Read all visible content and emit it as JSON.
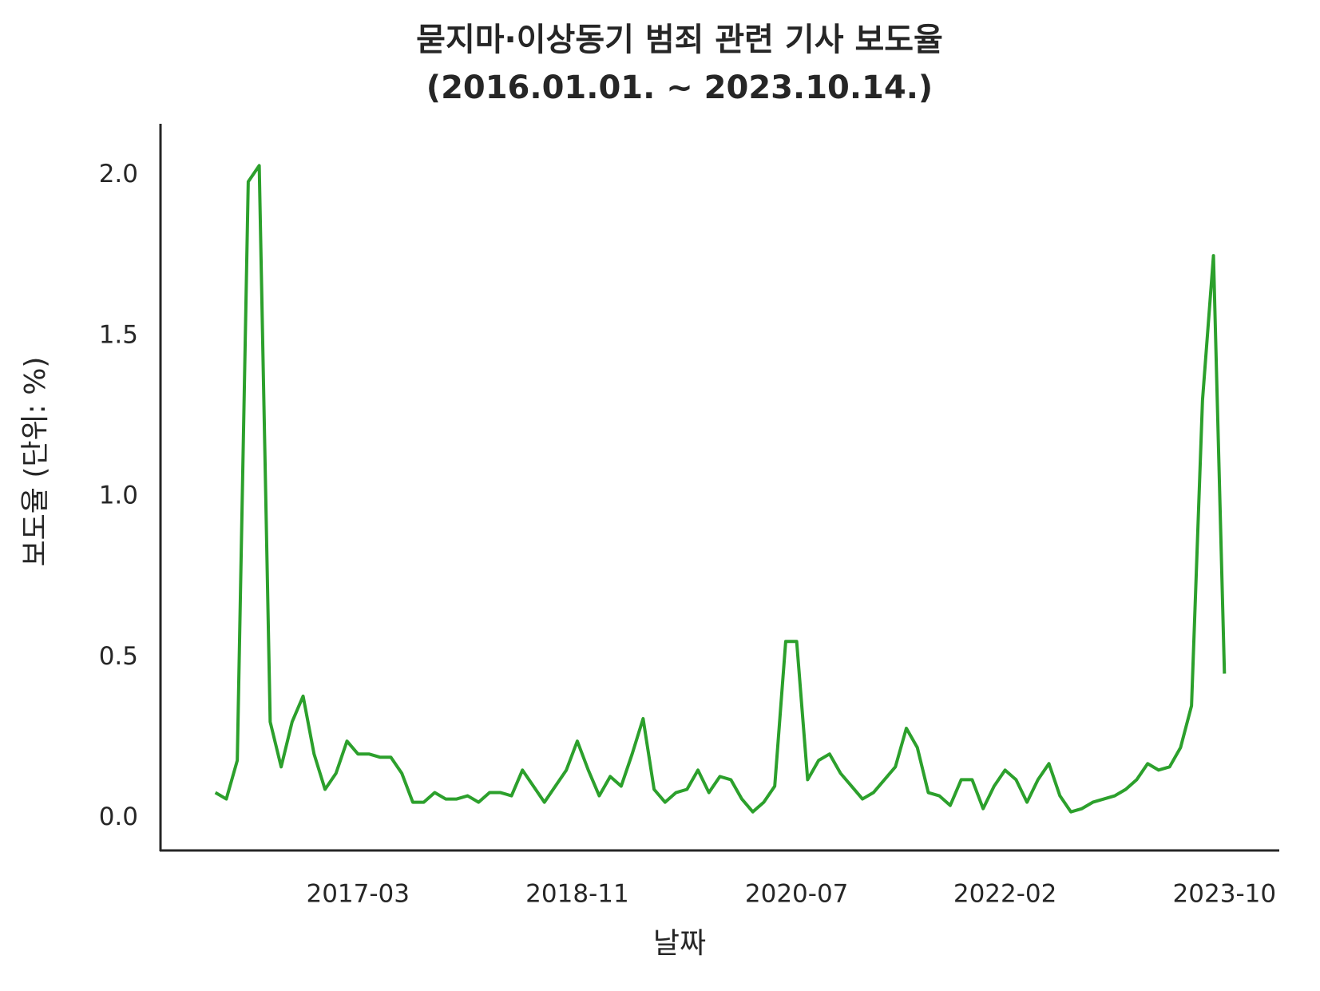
{
  "chart_data": {
    "type": "line",
    "title": "묻지마·이상동기 범죄 관련 기사 보도율",
    "subtitle": "(2016.01.01. ~ 2023.10.14.)",
    "x_label": "날짜",
    "y_label": "보도율 (단위: %)",
    "color": "#2ca02c",
    "x": [
      "2016-02",
      "2016-03",
      "2016-04",
      "2016-05",
      "2016-06",
      "2016-07",
      "2016-08",
      "2016-09",
      "2016-10",
      "2016-11",
      "2016-12",
      "2017-01",
      "2017-02",
      "2017-03",
      "2017-04",
      "2017-05",
      "2017-06",
      "2017-07",
      "2017-08",
      "2017-09",
      "2017-10",
      "2017-11",
      "2017-12",
      "2018-01",
      "2018-02",
      "2018-03",
      "2018-04",
      "2018-05",
      "2018-06",
      "2018-07",
      "2018-08",
      "2018-09",
      "2018-10",
      "2018-11",
      "2018-12",
      "2019-01",
      "2019-02",
      "2019-03",
      "2019-04",
      "2019-05",
      "2019-06",
      "2019-07",
      "2019-08",
      "2019-09",
      "2019-10",
      "2019-11",
      "2019-12",
      "2020-01",
      "2020-02",
      "2020-03",
      "2020-04",
      "2020-05",
      "2020-06",
      "2020-07",
      "2020-08",
      "2020-09",
      "2020-10",
      "2020-11",
      "2020-12",
      "2021-01",
      "2021-02",
      "2021-03",
      "2021-04",
      "2021-05",
      "2021-06",
      "2021-07",
      "2021-08",
      "2021-09",
      "2021-10",
      "2021-11",
      "2021-12",
      "2022-01",
      "2022-02",
      "2022-03",
      "2022-04",
      "2022-05",
      "2022-06",
      "2022-07",
      "2022-08",
      "2022-09",
      "2022-10",
      "2022-11",
      "2022-12",
      "2023-01",
      "2023-02",
      "2023-03",
      "2023-04",
      "2023-05",
      "2023-06",
      "2023-07",
      "2023-08",
      "2023-09",
      "2023-10"
    ],
    "values": [
      0.08,
      0.06,
      0.18,
      1.98,
      2.03,
      0.3,
      0.16,
      0.3,
      0.38,
      0.2,
      0.09,
      0.14,
      0.24,
      0.2,
      0.2,
      0.19,
      0.19,
      0.14,
      0.05,
      0.05,
      0.08,
      0.06,
      0.06,
      0.07,
      0.05,
      0.08,
      0.08,
      0.07,
      0.15,
      0.1,
      0.05,
      0.1,
      0.15,
      0.24,
      0.15,
      0.07,
      0.13,
      0.1,
      0.2,
      0.31,
      0.09,
      0.05,
      0.08,
      0.09,
      0.15,
      0.08,
      0.13,
      0.12,
      0.06,
      0.02,
      0.05,
      0.1,
      0.55,
      0.55,
      0.12,
      0.18,
      0.2,
      0.14,
      0.1,
      0.06,
      0.08,
      0.12,
      0.16,
      0.28,
      0.22,
      0.08,
      0.07,
      0.04,
      0.12,
      0.12,
      0.03,
      0.1,
      0.15,
      0.12,
      0.05,
      0.12,
      0.17,
      0.07,
      0.02,
      0.03,
      0.05,
      0.06,
      0.07,
      0.09,
      0.12,
      0.17,
      0.15,
      0.16,
      0.22,
      0.35,
      1.3,
      1.75,
      0.45
    ],
    "xlim": [
      "2015-09",
      "2024-03"
    ],
    "xticks": [
      "2017-03",
      "2018-11",
      "2020-07",
      "2022-02",
      "2023-10"
    ],
    "ylim": [
      -0.1,
      2.16
    ],
    "yticks": [
      {
        "value": 0,
        "label": "0.0"
      },
      0.5,
      {
        "value": 1,
        "label": "1.0"
      },
      1.5,
      {
        "value": 2,
        "label": "2.0"
      }
    ],
    "grid": false
  }
}
